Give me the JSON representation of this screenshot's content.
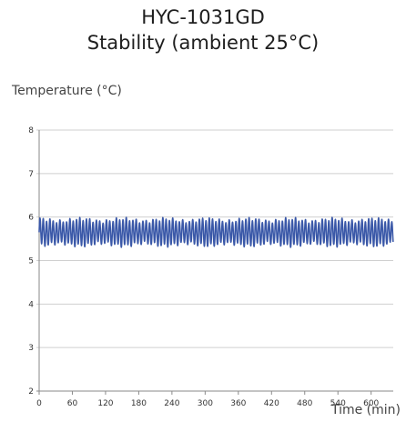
{
  "chart_data": {
    "type": "line",
    "title": "HYC-1031GD",
    "subtitle": "Stability (ambient 25°C)",
    "ylabel": "Temperature (°C)",
    "xlabel": "Time (min)",
    "xlim": [
      0,
      640
    ],
    "ylim": [
      2,
      8
    ],
    "x_ticks": [
      0,
      60,
      120,
      180,
      240,
      300,
      360,
      420,
      480,
      540,
      600
    ],
    "y_ticks": [
      2,
      3,
      4,
      5,
      6,
      7,
      8
    ],
    "grid": "horizontal",
    "series": [
      {
        "color": "#3a58a8",
        "pattern": "oscillating",
        "period_min": 6,
        "min": 5.35,
        "max": 5.95,
        "x_start": 0,
        "x_end": 640
      }
    ]
  }
}
